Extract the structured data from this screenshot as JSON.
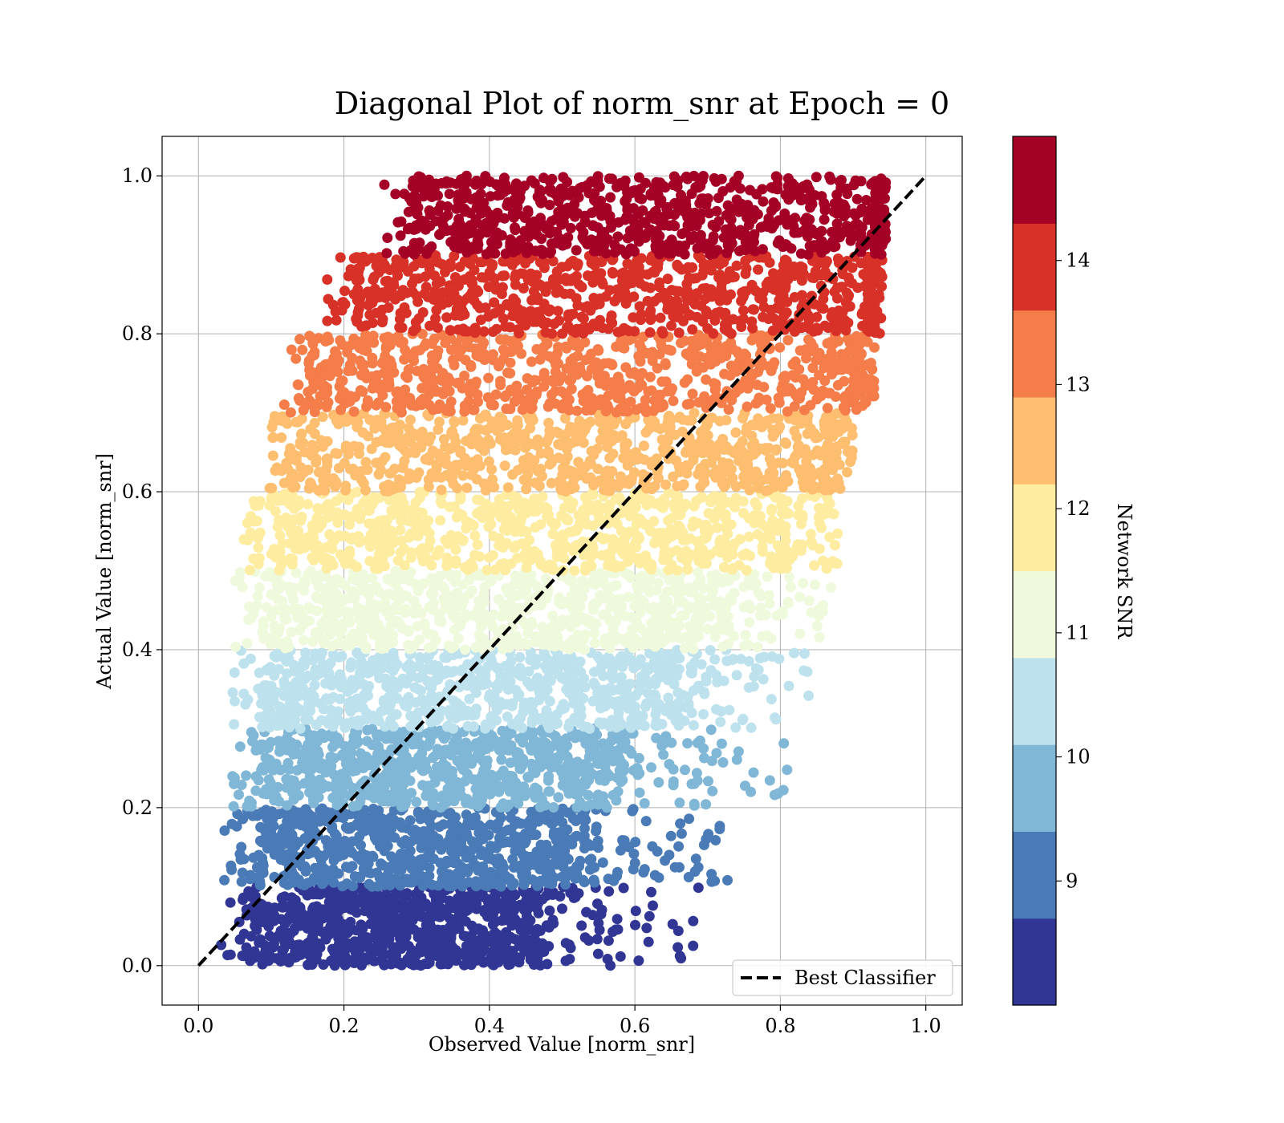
{
  "chart_data": {
    "type": "scatter",
    "title": "Diagonal Plot of norm_snr at Epoch = 0",
    "xlabel": "Observed Value [norm_snr]",
    "ylabel": "Actual Value [norm_snr]",
    "xlim": [
      -0.05,
      1.05
    ],
    "ylim": [
      -0.05,
      1.05
    ],
    "xticks": [
      "0.0",
      "0.2",
      "0.4",
      "0.6",
      "0.8",
      "1.0"
    ],
    "yticks": [
      "0.0",
      "0.2",
      "0.4",
      "0.6",
      "0.8",
      "1.0"
    ],
    "grid": true,
    "reference_line": {
      "label": "Best Classifier",
      "x": [
        0.0,
        1.0
      ],
      "y": [
        0.0,
        1.0
      ],
      "color": "#000000",
      "style": "dashed"
    },
    "legend_position": "lower-right",
    "colorbar": {
      "label": "Network SNR",
      "ticks": [
        "9",
        "10",
        "11",
        "12",
        "13",
        "14"
      ],
      "tick_values": [
        9,
        10,
        11,
        12,
        13,
        14
      ],
      "range": [
        8,
        15
      ],
      "colors": [
        "#313695",
        "#4a7bb7",
        "#80b6d6",
        "#bde2ee",
        "#eff9db",
        "#feeda1",
        "#fdbe70",
        "#f57d4a",
        "#d83128",
        "#a50026"
      ]
    },
    "bands": [
      {
        "y_range": [
          0.0,
          0.1
        ],
        "x_dense": [
          0.08,
          0.47
        ],
        "x_tail_max": 0.69,
        "color": "#313695"
      },
      {
        "y_range": [
          0.1,
          0.2
        ],
        "x_dense": [
          0.085,
          0.53
        ],
        "x_tail_max": 0.73,
        "color": "#4a7bb7"
      },
      {
        "y_range": [
          0.2,
          0.3
        ],
        "x_dense": [
          0.09,
          0.58
        ],
        "x_tail_max": 0.81,
        "color": "#80b6d6"
      },
      {
        "y_range": [
          0.3,
          0.4
        ],
        "x_dense": [
          0.095,
          0.66
        ],
        "x_tail_max": 0.84,
        "color": "#bde2ee"
      },
      {
        "y_range": [
          0.4,
          0.5
        ],
        "x_dense": [
          0.1,
          0.72
        ],
        "x_tail_max": 0.87,
        "color": "#eff9db"
      },
      {
        "y_range": [
          0.5,
          0.6
        ],
        "x_dense": [
          0.11,
          0.8
        ],
        "x_tail_max": 0.88,
        "color": "#feeda1"
      },
      {
        "y_range": [
          0.6,
          0.7
        ],
        "x_dense": [
          0.13,
          0.86
        ],
        "x_tail_max": 0.9,
        "color": "#fdbe70"
      },
      {
        "y_range": [
          0.7,
          0.8
        ],
        "x_dense": [
          0.16,
          0.9
        ],
        "x_tail_max": 0.93,
        "color": "#f57d4a"
      },
      {
        "y_range": [
          0.8,
          0.9
        ],
        "x_dense": [
          0.22,
          0.92
        ],
        "x_tail_max": 0.94,
        "color": "#d83128"
      },
      {
        "y_range": [
          0.9,
          1.0
        ],
        "x_dense": [
          0.3,
          0.93
        ],
        "x_tail_max": 0.945,
        "color": "#a50026"
      }
    ]
  }
}
